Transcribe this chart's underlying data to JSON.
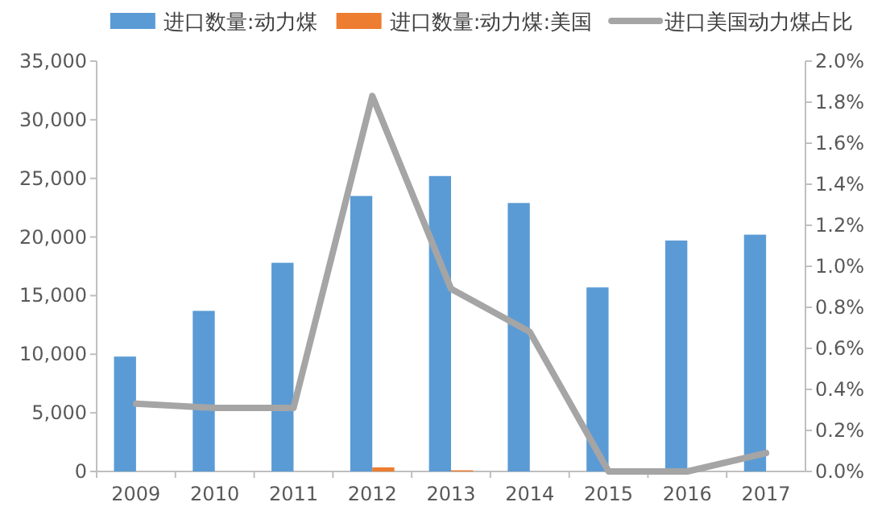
{
  "chart_data": {
    "type": "bar",
    "categories": [
      "2009",
      "2010",
      "2011",
      "2012",
      "2013",
      "2014",
      "2015",
      "2016",
      "2017"
    ],
    "series": [
      {
        "name": "进口数量:动力煤",
        "color": "#5b9bd5",
        "values": [
          9800,
          13700,
          17800,
          23500,
          25200,
          22900,
          15700,
          19700,
          20200
        ]
      },
      {
        "name": "进口数量:动力煤:美国",
        "color": "#ed7d31",
        "values": [
          0,
          0,
          0,
          350,
          100,
          0,
          0,
          0,
          0
        ]
      },
      {
        "name": "进口美国动力煤占比",
        "type": "line",
        "axis": "y2",
        "color": "#a5a5a5",
        "values": [
          0.33,
          0.31,
          0.31,
          1.83,
          0.89,
          0.68,
          0,
          0,
          0.09
        ]
      }
    ],
    "ylim": [
      0,
      35000
    ],
    "yticks": [
      {
        "value": 0,
        "label": "0"
      },
      {
        "value": 5000,
        "label": "5,000"
      },
      {
        "value": 10000,
        "label": "10,000"
      },
      {
        "value": 15000,
        "label": "15,000"
      },
      {
        "value": 20000,
        "label": "20,000"
      },
      {
        "value": 25000,
        "label": "25,000"
      },
      {
        "value": 30000,
        "label": "30,000"
      },
      {
        "value": 35000,
        "label": "35,000"
      }
    ],
    "y2lim": [
      0,
      2.0
    ],
    "y2ticks": [
      {
        "value": 0,
        "label": "0.0%"
      },
      {
        "value": 0.2,
        "label": "0.2%"
      },
      {
        "value": 0.4,
        "label": "0.4%"
      },
      {
        "value": 0.6,
        "label": "0.6%"
      },
      {
        "value": 0.8,
        "label": "0.8%"
      },
      {
        "value": 1.0,
        "label": "1.0%"
      },
      {
        "value": 1.2,
        "label": "1.2%"
      },
      {
        "value": 1.4,
        "label": "1.4%"
      },
      {
        "value": 1.6,
        "label": "1.6%"
      },
      {
        "value": 1.8,
        "label": "1.8%"
      },
      {
        "value": 2.0,
        "label": "2.0%"
      }
    ],
    "legend": "top",
    "grid": false
  }
}
